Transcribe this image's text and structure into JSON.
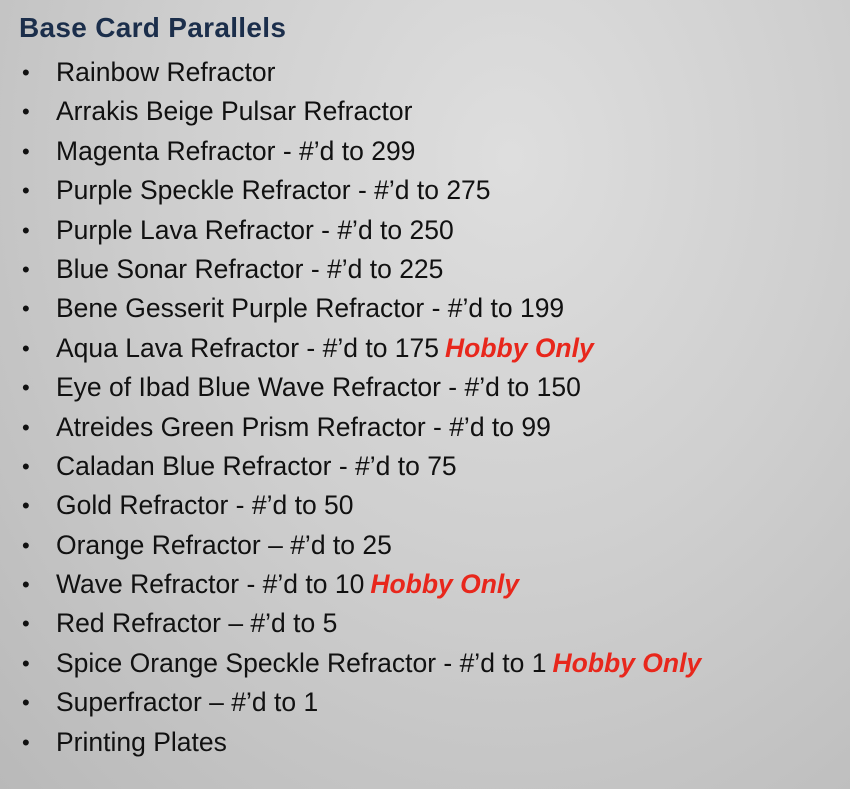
{
  "title": "Base Card Parallels",
  "colors": {
    "title": "#1b2e4b",
    "hobby": "#e8271c"
  },
  "items": [
    {
      "text": "Rainbow Refractor",
      "tag": ""
    },
    {
      "text": "Arrakis Beige Pulsar Refractor",
      "tag": ""
    },
    {
      "text": "Magenta Refractor - #’d to 299",
      "tag": ""
    },
    {
      "text": "Purple Speckle Refractor - #’d to 275",
      "tag": ""
    },
    {
      "text": "Purple Lava Refractor - #’d to 250",
      "tag": ""
    },
    {
      "text": "Blue Sonar Refractor - #’d to 225",
      "tag": ""
    },
    {
      "text": "Bene Gesserit Purple Refractor - #’d to 199",
      "tag": ""
    },
    {
      "text": "Aqua Lava Refractor - #’d to 175",
      "tag": "Hobby Only"
    },
    {
      "text": "Eye of Ibad Blue Wave Refractor - #’d to 150",
      "tag": ""
    },
    {
      "text": "Atreides Green Prism Refractor - #’d to 99",
      "tag": ""
    },
    {
      "text": "Caladan Blue Refractor - #’d to 75",
      "tag": ""
    },
    {
      "text": "Gold Refractor - #’d to 50",
      "tag": ""
    },
    {
      "text": "Orange Refractor – #’d to 25",
      "tag": ""
    },
    {
      "text": "Wave Refractor - #’d to 10",
      "tag": "Hobby Only"
    },
    {
      "text": "Red Refractor – #’d to 5",
      "tag": ""
    },
    {
      "text": "Spice Orange Speckle Refractor - #’d to 1",
      "tag": "Hobby Only"
    },
    {
      "text": "Superfractor – #’d to 1",
      "tag": ""
    },
    {
      "text": "Printing Plates",
      "tag": ""
    }
  ]
}
